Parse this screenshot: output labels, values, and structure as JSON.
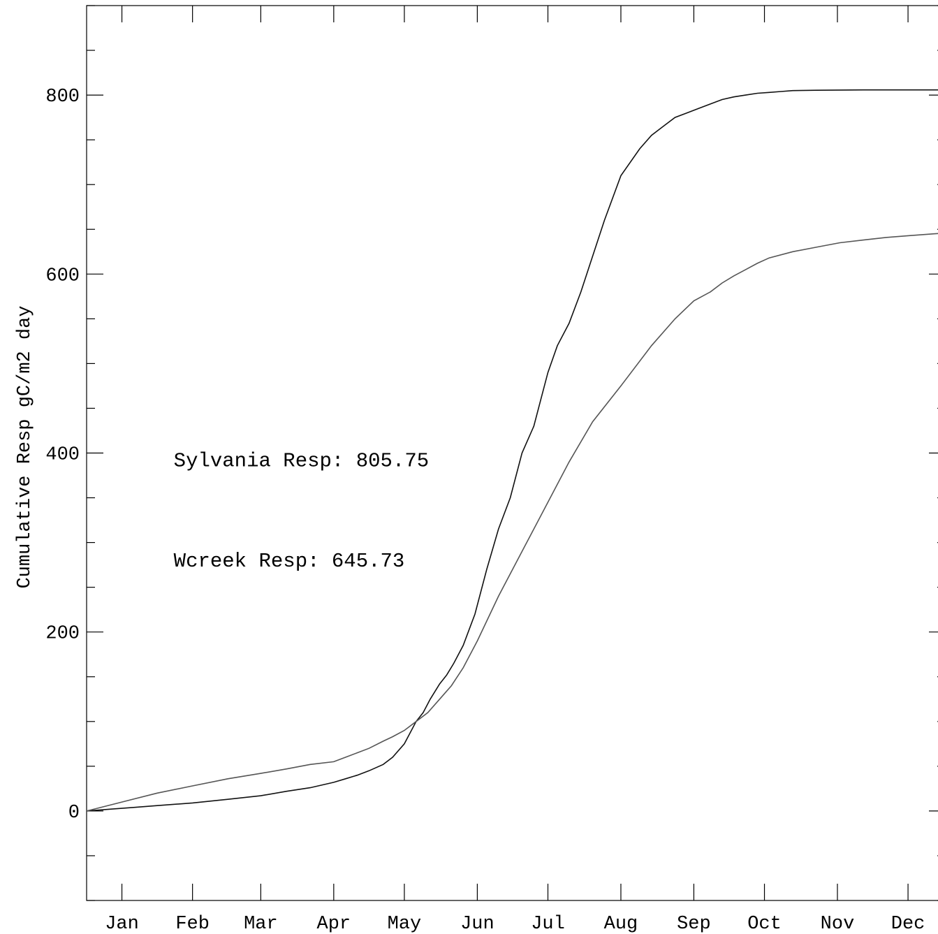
{
  "chart_data": {
    "type": "line",
    "title": "",
    "xlabel": "",
    "ylabel": "Cumulative Resp gC/m2 day",
    "ylim": [
      -100,
      900
    ],
    "xlim": [
      0,
      365
    ],
    "y_major_ticks": [
      0,
      200,
      400,
      600,
      800
    ],
    "y_minor_step": 50,
    "month_labels": [
      "Jan",
      "Feb",
      "Mar",
      "Apr",
      "May",
      "Jun",
      "Jul",
      "Aug",
      "Sep",
      "Oct",
      "Nov",
      "Dec"
    ],
    "month_label_days": [
      15,
      45,
      74,
      105,
      135,
      166,
      196,
      227,
      258,
      288,
      319,
      349
    ],
    "month_tick_days": [
      15,
      45,
      74,
      105,
      135,
      166,
      196,
      227,
      258,
      288,
      319,
      349
    ],
    "grid": false,
    "annotations": [
      {
        "text": "Sylvania Resp: 805.75",
        "x_day": 37,
        "y": 385
      },
      {
        "text": "Wcreek Resp: 645.73",
        "x_day": 37,
        "y": 273
      }
    ],
    "series": [
      {
        "key": "sylvania",
        "color": "#111111",
        "x": [
          0,
          10,
          20,
          30,
          45,
          60,
          74,
          85,
          95,
          105,
          110,
          115,
          120,
          126,
          130,
          135,
          140,
          143,
          146,
          150,
          153,
          156,
          160,
          165,
          170,
          175,
          180,
          185,
          190,
          193,
          196,
          200,
          205,
          210,
          215,
          220,
          227,
          235,
          240,
          245,
          250,
          255,
          260,
          265,
          270,
          275,
          280,
          285,
          290,
          295,
          300,
          305,
          310,
          315,
          320,
          325,
          330,
          340,
          350,
          365
        ],
        "values": [
          0,
          2,
          4,
          6,
          9,
          13,
          17,
          22,
          26,
          32,
          36,
          40,
          45,
          52,
          60,
          75,
          100,
          110,
          125,
          142,
          152,
          165,
          185,
          220,
          270,
          315,
          350,
          400,
          430,
          460,
          490,
          520,
          545,
          580,
          620,
          660,
          710,
          740,
          755,
          765,
          775,
          780,
          785,
          790,
          795,
          798,
          800,
          802,
          803,
          804,
          805,
          805.2,
          805.4,
          805.5,
          805.6,
          805.7,
          805.75,
          805.75,
          805.75,
          805.75
        ]
      },
      {
        "key": "wcreek",
        "color": "#555555",
        "x": [
          0,
          15,
          30,
          45,
          60,
          74,
          85,
          95,
          105,
          110,
          115,
          120,
          126,
          130,
          135,
          140,
          145,
          150,
          155,
          160,
          166,
          175,
          185,
          195,
          205,
          215,
          227,
          240,
          250,
          258,
          265,
          270,
          275,
          280,
          285,
          290,
          300,
          310,
          320,
          330,
          340,
          350,
          360,
          365
        ],
        "values": [
          0,
          10,
          20,
          28,
          36,
          42,
          47,
          52,
          55,
          60,
          65,
          70,
          78,
          83,
          90,
          100,
          110,
          125,
          140,
          160,
          190,
          240,
          290,
          340,
          390,
          435,
          475,
          520,
          550,
          570,
          580,
          590,
          598,
          605,
          612,
          618,
          625,
          630,
          635,
          638,
          641,
          643,
          645,
          645.73
        ]
      }
    ]
  }
}
